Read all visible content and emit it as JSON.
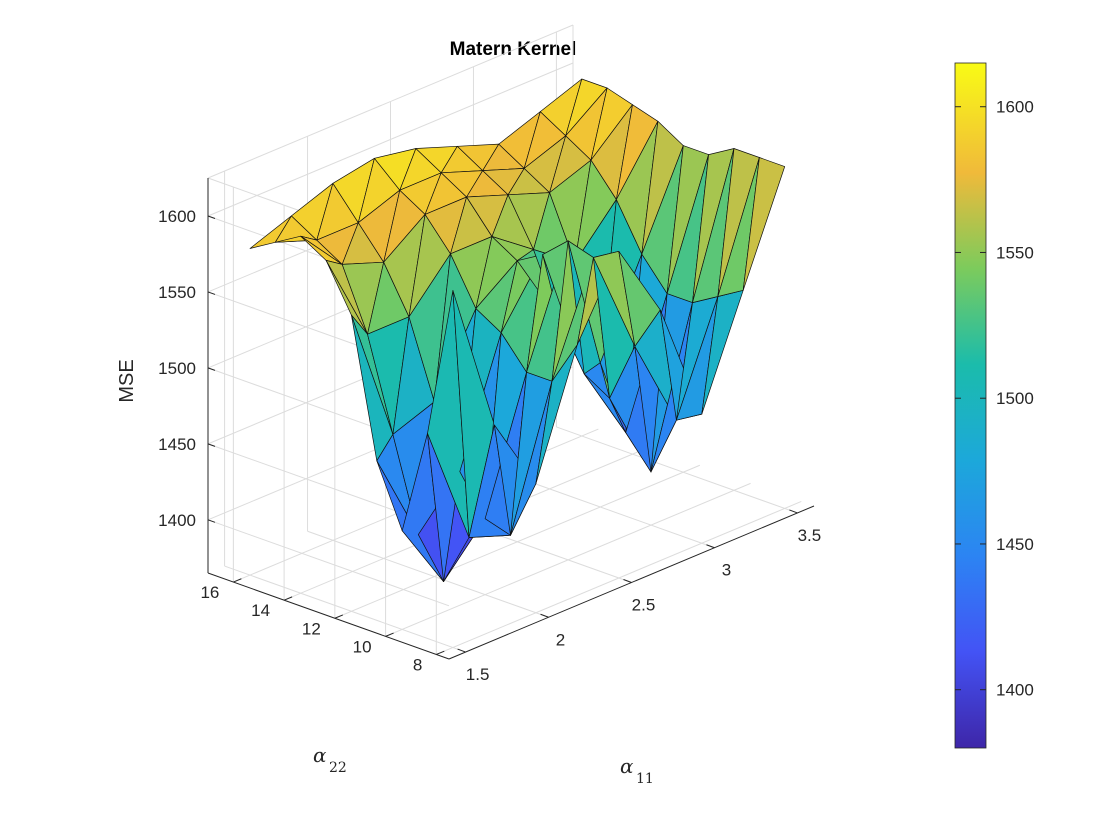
{
  "chart_data": {
    "type": "surface3d",
    "title": "Matern Kernel",
    "zlabel": "MSE",
    "xlabel": {
      "symbol": "α",
      "subscript": "11"
    },
    "ylabel": {
      "symbol": "α",
      "subscript": "22"
    },
    "xlim": [
      1.4,
      3.6
    ],
    "ylim": [
      7.5,
      17
    ],
    "zlim": [
      1365,
      1625
    ],
    "xticks": [
      1.5,
      2,
      2.5,
      3,
      3.5
    ],
    "xtick_labels": [
      "1.5",
      "2",
      "2.5",
      "3",
      "3.5"
    ],
    "yticks": [
      8,
      10,
      12,
      14,
      16
    ],
    "ytick_labels": [
      "8",
      "10",
      "12",
      "14",
      "16"
    ],
    "zticks": [
      1400,
      1450,
      1500,
      1550,
      1600
    ],
    "ztick_labels": [
      "1400",
      "1450",
      "1500",
      "1550",
      "1600"
    ],
    "colorbar": {
      "range": [
        1380,
        1615
      ],
      "ticks": [
        1400,
        1450,
        1500,
        1550,
        1600
      ],
      "tick_labels": [
        "1400",
        "1450",
        "1500",
        "1550",
        "1600"
      ],
      "colormap": "parula"
    },
    "grid": true,
    "surface": {
      "x": [
        1.5,
        1.75,
        2.0,
        2.25,
        2.5,
        2.75,
        3.0,
        3.25,
        3.5
      ],
      "y": [
        8,
        9,
        10,
        11,
        12,
        13,
        14,
        15,
        16
      ],
      "z": [
        [
          1600,
          1500,
          1450,
          1530,
          1580,
          1530,
          1450,
          1520,
          1590
        ],
        [
          1500,
          1420,
          1410,
          1500,
          1570,
          1500,
          1440,
          1510,
          1590
        ],
        [
          1430,
          1385,
          1415,
          1500,
          1575,
          1460,
          1400,
          1500,
          1590
        ],
        [
          1470,
          1410,
          1440,
          1520,
          1560,
          1470,
          1420,
          1500,
          1580
        ],
        [
          1560,
          1470,
          1480,
          1530,
          1550,
          1500,
          1460,
          1520,
          1580
        ],
        [
          1590,
          1530,
          1530,
          1560,
          1560,
          1540,
          1520,
          1550,
          1590
        ],
        [
          1600,
          1570,
          1560,
          1580,
          1580,
          1570,
          1560,
          1570,
          1595
        ],
        [
          1590,
          1580,
          1580,
          1590,
          1590,
          1580,
          1570,
          1580,
          1600
        ],
        [
          1580,
          1590,
          1600,
          1605,
          1600,
          1590,
          1580,
          1590,
          1600
        ]
      ]
    }
  }
}
